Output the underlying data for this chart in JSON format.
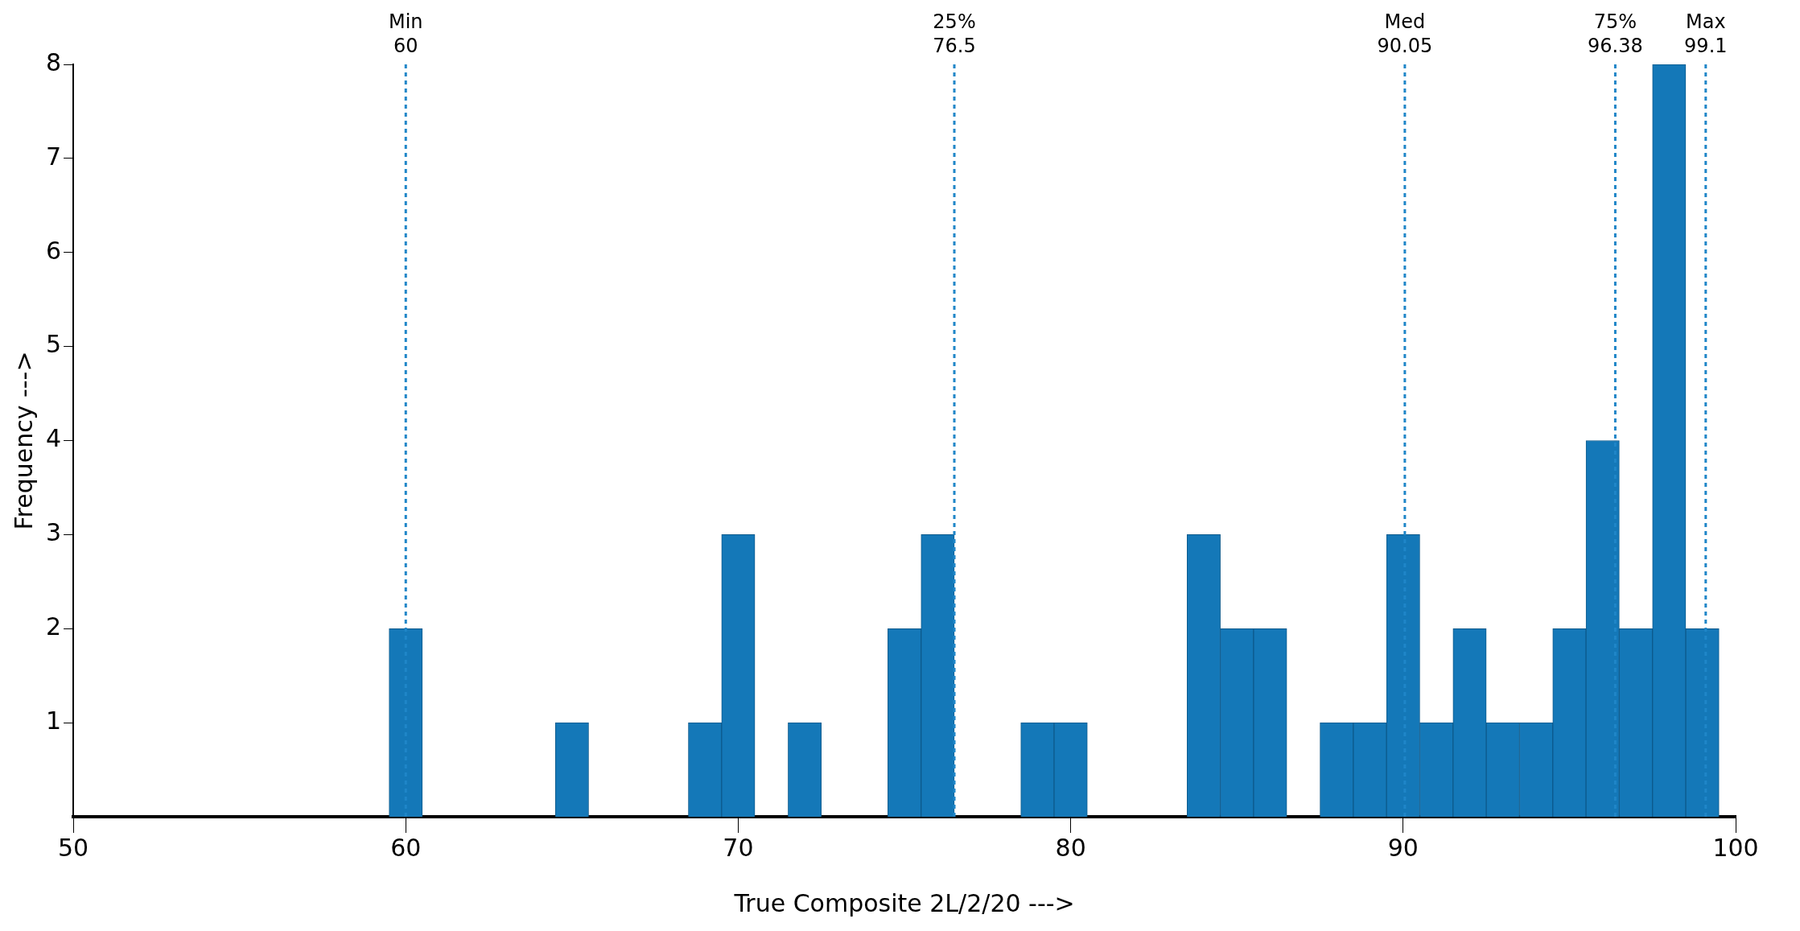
{
  "chart_data": {
    "type": "histogram",
    "xlabel": "True Composite 2L/2/20 --->",
    "ylabel": "Frequency --->",
    "bins": [
      59.5,
      60.5,
      61.5,
      62.5,
      63.5,
      64.5,
      65.5,
      66.5,
      67.5,
      68.5,
      69.5,
      70.5,
      71.5,
      72.5,
      73.5,
      74.5,
      75.5,
      76.5,
      77.5,
      78.5,
      79.5,
      80.5,
      81.5,
      82.5,
      83.5,
      84.5,
      85.5,
      86.5,
      87.5,
      88.5,
      89.5,
      90.5,
      91.5,
      92.5,
      93.5,
      94.5,
      95.5,
      96.5,
      97.5,
      98.5,
      99.5
    ],
    "values": [
      2,
      0,
      0,
      0,
      0,
      1,
      0,
      0,
      0,
      1,
      3,
      0,
      1,
      0,
      0,
      2,
      3,
      0,
      0,
      1,
      1,
      0,
      0,
      0,
      3,
      2,
      2,
      0,
      1,
      1,
      3,
      1,
      2,
      1,
      1,
      2,
      4,
      2,
      8,
      2
    ],
    "color": "#1478b8",
    "xlim": [
      50,
      100
    ],
    "xticks": [
      50,
      60,
      70,
      80,
      90,
      100
    ],
    "ylim": [
      0,
      8
    ],
    "yticks": [
      1,
      2,
      3,
      4,
      5,
      6,
      7,
      8
    ],
    "grid": false,
    "legend": false,
    "ref_lines": [
      {
        "axis": "x",
        "value": 60,
        "label": "Min\n60",
        "color": "#1f86c8",
        "line_style": "dotted"
      },
      {
        "axis": "x",
        "value": 76.5,
        "label": "25%\n76.5",
        "color": "#1f86c8",
        "line_style": "dotted"
      },
      {
        "axis": "x",
        "value": 90.05,
        "label": "Med\n90.05",
        "color": "#1f86c8",
        "line_style": "dotted"
      },
      {
        "axis": "x",
        "value": 96.38,
        "label": "75%\n96.38",
        "color": "#1f86c8",
        "line_style": "dotted"
      },
      {
        "axis": "x",
        "value": 99.1,
        "label": "Max\n99.1",
        "color": "#1f86c8",
        "line_style": "dotted"
      }
    ]
  }
}
